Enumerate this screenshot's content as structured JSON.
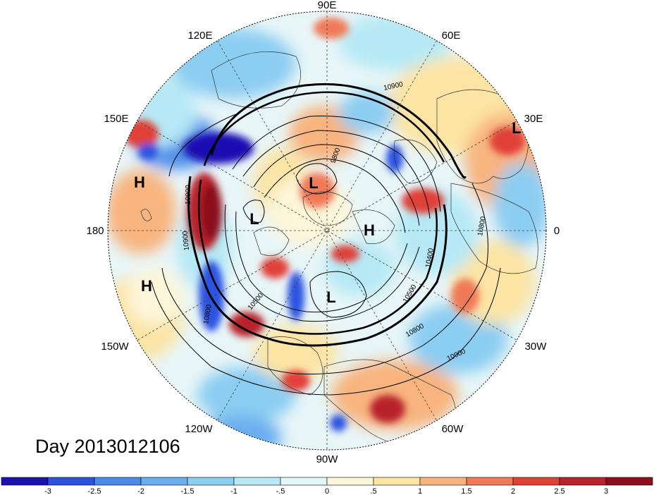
{
  "title": "Day 2013012106",
  "longitude_labels": {
    "lon_90E": "90E",
    "lon_60E": "60E",
    "lon_30E": "30E",
    "lon_0": "0",
    "lon_30W": "30W",
    "lon_60W": "60W",
    "lon_90W": "90W",
    "lon_120W": "120W",
    "lon_150W": "150W",
    "lon_180": "180",
    "lon_150E": "150E",
    "lon_120E": "120E"
  },
  "pressure_centers": {
    "h_west_top": "H",
    "h_west_bottom": "H",
    "l_center_north": "L",
    "l_center_left": "L",
    "h_center_right": "H",
    "l_lower_center": "L",
    "l_east_edge": "L"
  },
  "contour_labels": {
    "c10900_top": "10900",
    "c9800": "9800",
    "c10800_right": "10800",
    "c10400": "10400",
    "c10500_right": "10500",
    "c10800_lower": "10800",
    "c10900_lower": "10900",
    "c10500_left": "10500",
    "c10800_left": "10800",
    "c10900_left": "10900",
    "c10900_left2": "10900"
  },
  "colorbar": {
    "ticks": [
      "-3",
      "-2.5",
      "-2",
      "-1.5",
      "-1",
      "-.5",
      "0",
      ".5",
      "1",
      "1.5",
      "2",
      "2.5",
      "3"
    ],
    "colors": [
      "#1d10b3",
      "#2b53e0",
      "#4a8be8",
      "#6aaeef",
      "#8ccdf2",
      "#b6e9f5",
      "#e2f6f8",
      "#fdf6da",
      "#fce4a4",
      "#f8b47e",
      "#ef7a58",
      "#e04137",
      "#b8232c",
      "#8c0f1f"
    ]
  }
}
